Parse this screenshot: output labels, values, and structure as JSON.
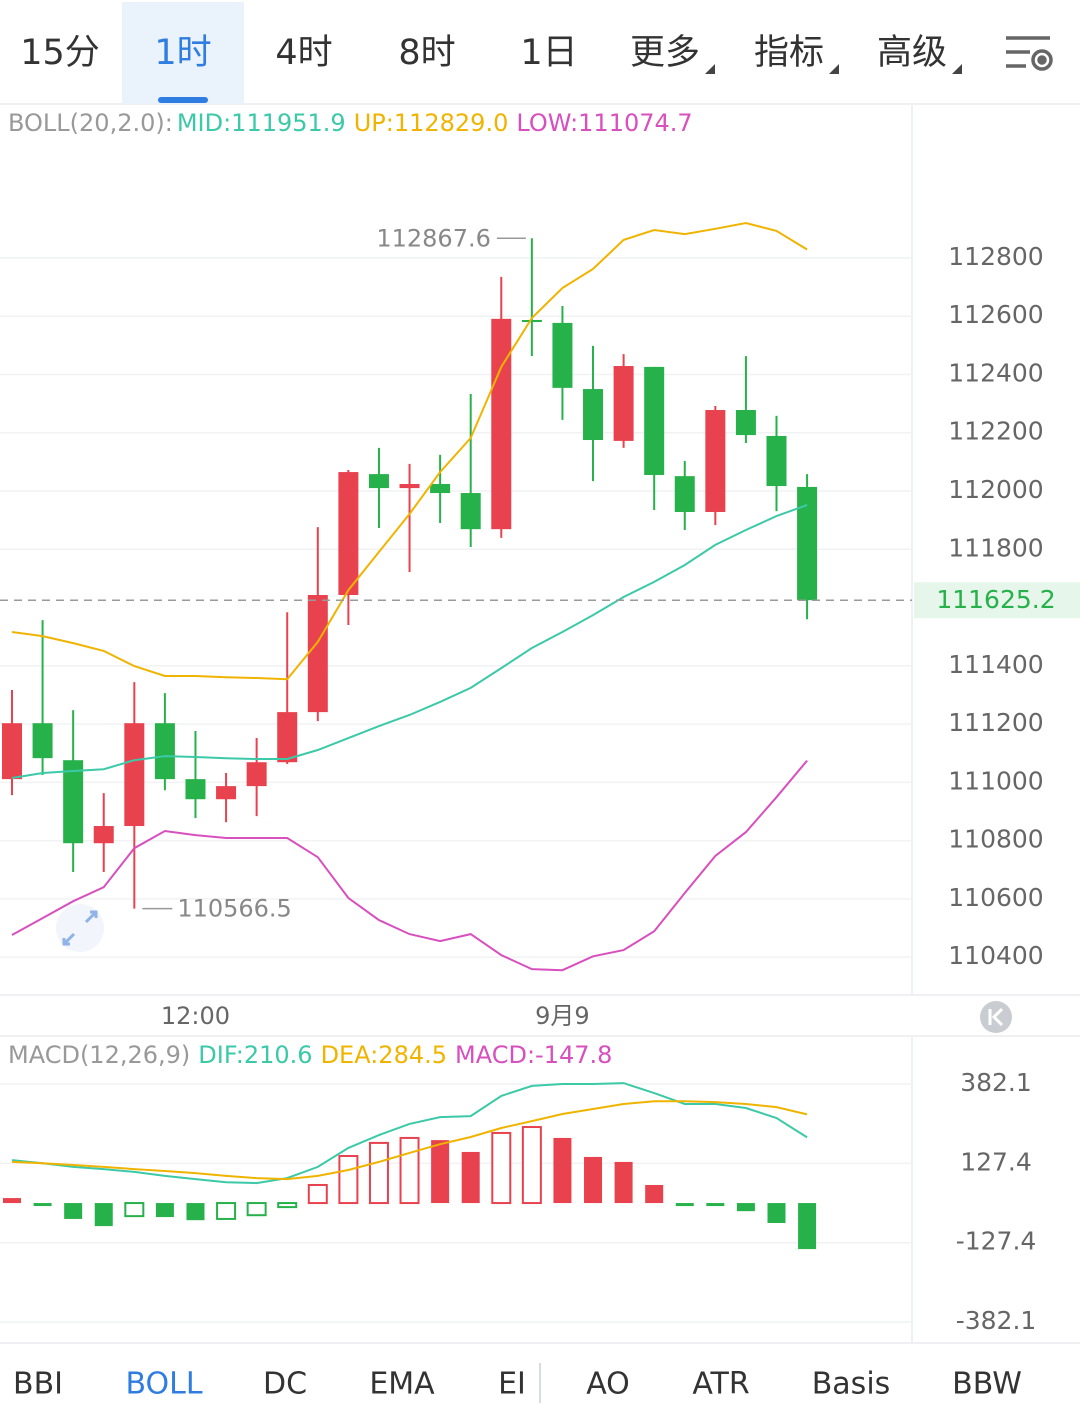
{
  "tabs": {
    "items": [
      "15分",
      "1时",
      "4时",
      "8时",
      "1日",
      "更多",
      "指标",
      "高级"
    ],
    "selected": 1
  },
  "chart_data": [
    {
      "type": "candlestick",
      "title": "BOLL(20,2.0):",
      "categories": [
        null,
        null,
        null,
        null,
        null,
        null,
        "12:00",
        null,
        null,
        null,
        null,
        null,
        null,
        null,
        null,
        null,
        null,
        null,
        "9月9",
        null,
        null,
        null,
        null,
        null,
        null,
        null,
        null
      ],
      "open": [
        111011,
        111203,
        111076,
        110791,
        110850,
        111203,
        111011,
        110942,
        110987,
        111069,
        111241,
        111643,
        112058,
        112010,
        112024,
        111993,
        111869,
        112587,
        112577,
        112350,
        112172,
        112426,
        112051,
        111928,
        112278,
        112189,
        112014
      ],
      "high": [
        111317,
        111557,
        111248,
        110963,
        111344,
        111306,
        111176,
        111032,
        111152,
        111584,
        111876,
        112072,
        112148,
        112093,
        112124,
        112333,
        112735,
        112867.6,
        112635,
        112498,
        112470,
        112426,
        112103,
        112292,
        112463,
        112258,
        112058
      ],
      "low": [
        110956,
        111025,
        110692,
        110692,
        110566.5,
        110973,
        110877,
        110863,
        110884,
        111063,
        111210,
        111540,
        111873,
        111722,
        111890,
        111808,
        111839,
        112463,
        112244,
        112034,
        112148,
        111935,
        111866,
        111883,
        112165,
        111931,
        111560
      ],
      "close": [
        111203,
        111083,
        110791,
        110850,
        111203,
        111011,
        110942,
        110987,
        111069,
        111241,
        111643,
        112065,
        112010,
        112024,
        111993,
        111869,
        112591,
        112580,
        112354,
        112175,
        112429,
        112055,
        111928,
        112278,
        112192,
        112017,
        111625.2
      ],
      "up_color": "#e8424f",
      "down_color": "#27b14a",
      "series": [
        {
          "name": "MID:111951.9",
          "color": "#3cc9a8",
          "values": [
            111015,
            111032,
            111039,
            111045,
            111076,
            111090,
            111087,
            111083,
            111080,
            111080,
            111111,
            111152,
            111193,
            111231,
            111276,
            111324,
            111392,
            111461,
            111516,
            111574,
            111636,
            111688,
            111746,
            111815,
            111866,
            111914,
            111951.9
          ]
        },
        {
          "name": "UP:112829.0",
          "color": "#f0b400",
          "values": [
            111516,
            111502,
            111478,
            111451,
            111399,
            111365,
            111365,
            111361,
            111358,
            111354,
            111482,
            111660,
            111791,
            111921,
            112065,
            112182,
            112426,
            112594,
            112697,
            112762,
            112862,
            112896,
            112882,
            112900,
            112920,
            112893,
            112829
          ]
        },
        {
          "name": "LOW:111074.7",
          "color": "#d84fbe",
          "values": [
            110476,
            110534,
            110592,
            110640,
            110774,
            110833,
            110819,
            110809,
            110809,
            110809,
            110743,
            110603,
            110527,
            110479,
            110455,
            110479,
            110407,
            110359,
            110355,
            110403,
            110424,
            110489,
            110620,
            110747,
            110829,
            110949,
            111074.7
          ]
        }
      ],
      "ylim": [
        110270,
        113325
      ],
      "yticks": [
        112800,
        112600,
        112400,
        112200,
        112000,
        111800,
        111400,
        111200,
        111000,
        110800,
        110600,
        110400
      ],
      "grid": true
    },
    {
      "type": "macd",
      "title": "MACD(12,26,9)",
      "values": [
        16,
        -3,
        -51,
        -74,
        -42,
        -45,
        -55,
        -51,
        -39,
        -13,
        58,
        151,
        193,
        209,
        202,
        164,
        225,
        244,
        209,
        148,
        132,
        58,
        -6,
        -6,
        -26,
        -64,
        -147.8
      ],
      "name": "MACD:-147.8",
      "color": "#d84fbe",
      "up_color": "#e8424f",
      "down_color": "#27b14a",
      "series": [
        {
          "name": "DIF:210.6",
          "color": "#3cc9a8",
          "values": [
            138,
            128,
            116,
            109,
            100,
            87,
            77,
            67,
            64,
            80,
            116,
            177,
            218,
            254,
            276,
            279,
            344,
            376,
            382,
            382,
            385,
            353,
            318,
            318,
            305,
            273,
            210.6
          ]
        },
        {
          "name": "DEA:284.5",
          "color": "#f0b400",
          "values": [
            132,
            128,
            122,
            116,
            109,
            103,
            96,
            87,
            80,
            77,
            87,
            106,
            132,
            161,
            189,
            212,
            241,
            263,
            286,
            302,
            318,
            327,
            327,
            324,
            318,
            308,
            284.5
          ]
        }
      ],
      "ylim": [
        -446,
        533
      ],
      "yticks": [
        382.1,
        127.4,
        -127.4,
        -382.1
      ],
      "grid": true
    }
  ],
  "indicator_tabs": {
    "items": [
      "BBI",
      "BOLL",
      "DC",
      "EMA",
      "EI",
      "AO",
      "ATR",
      "Basis",
      "BBW"
    ],
    "selected": 1
  }
}
